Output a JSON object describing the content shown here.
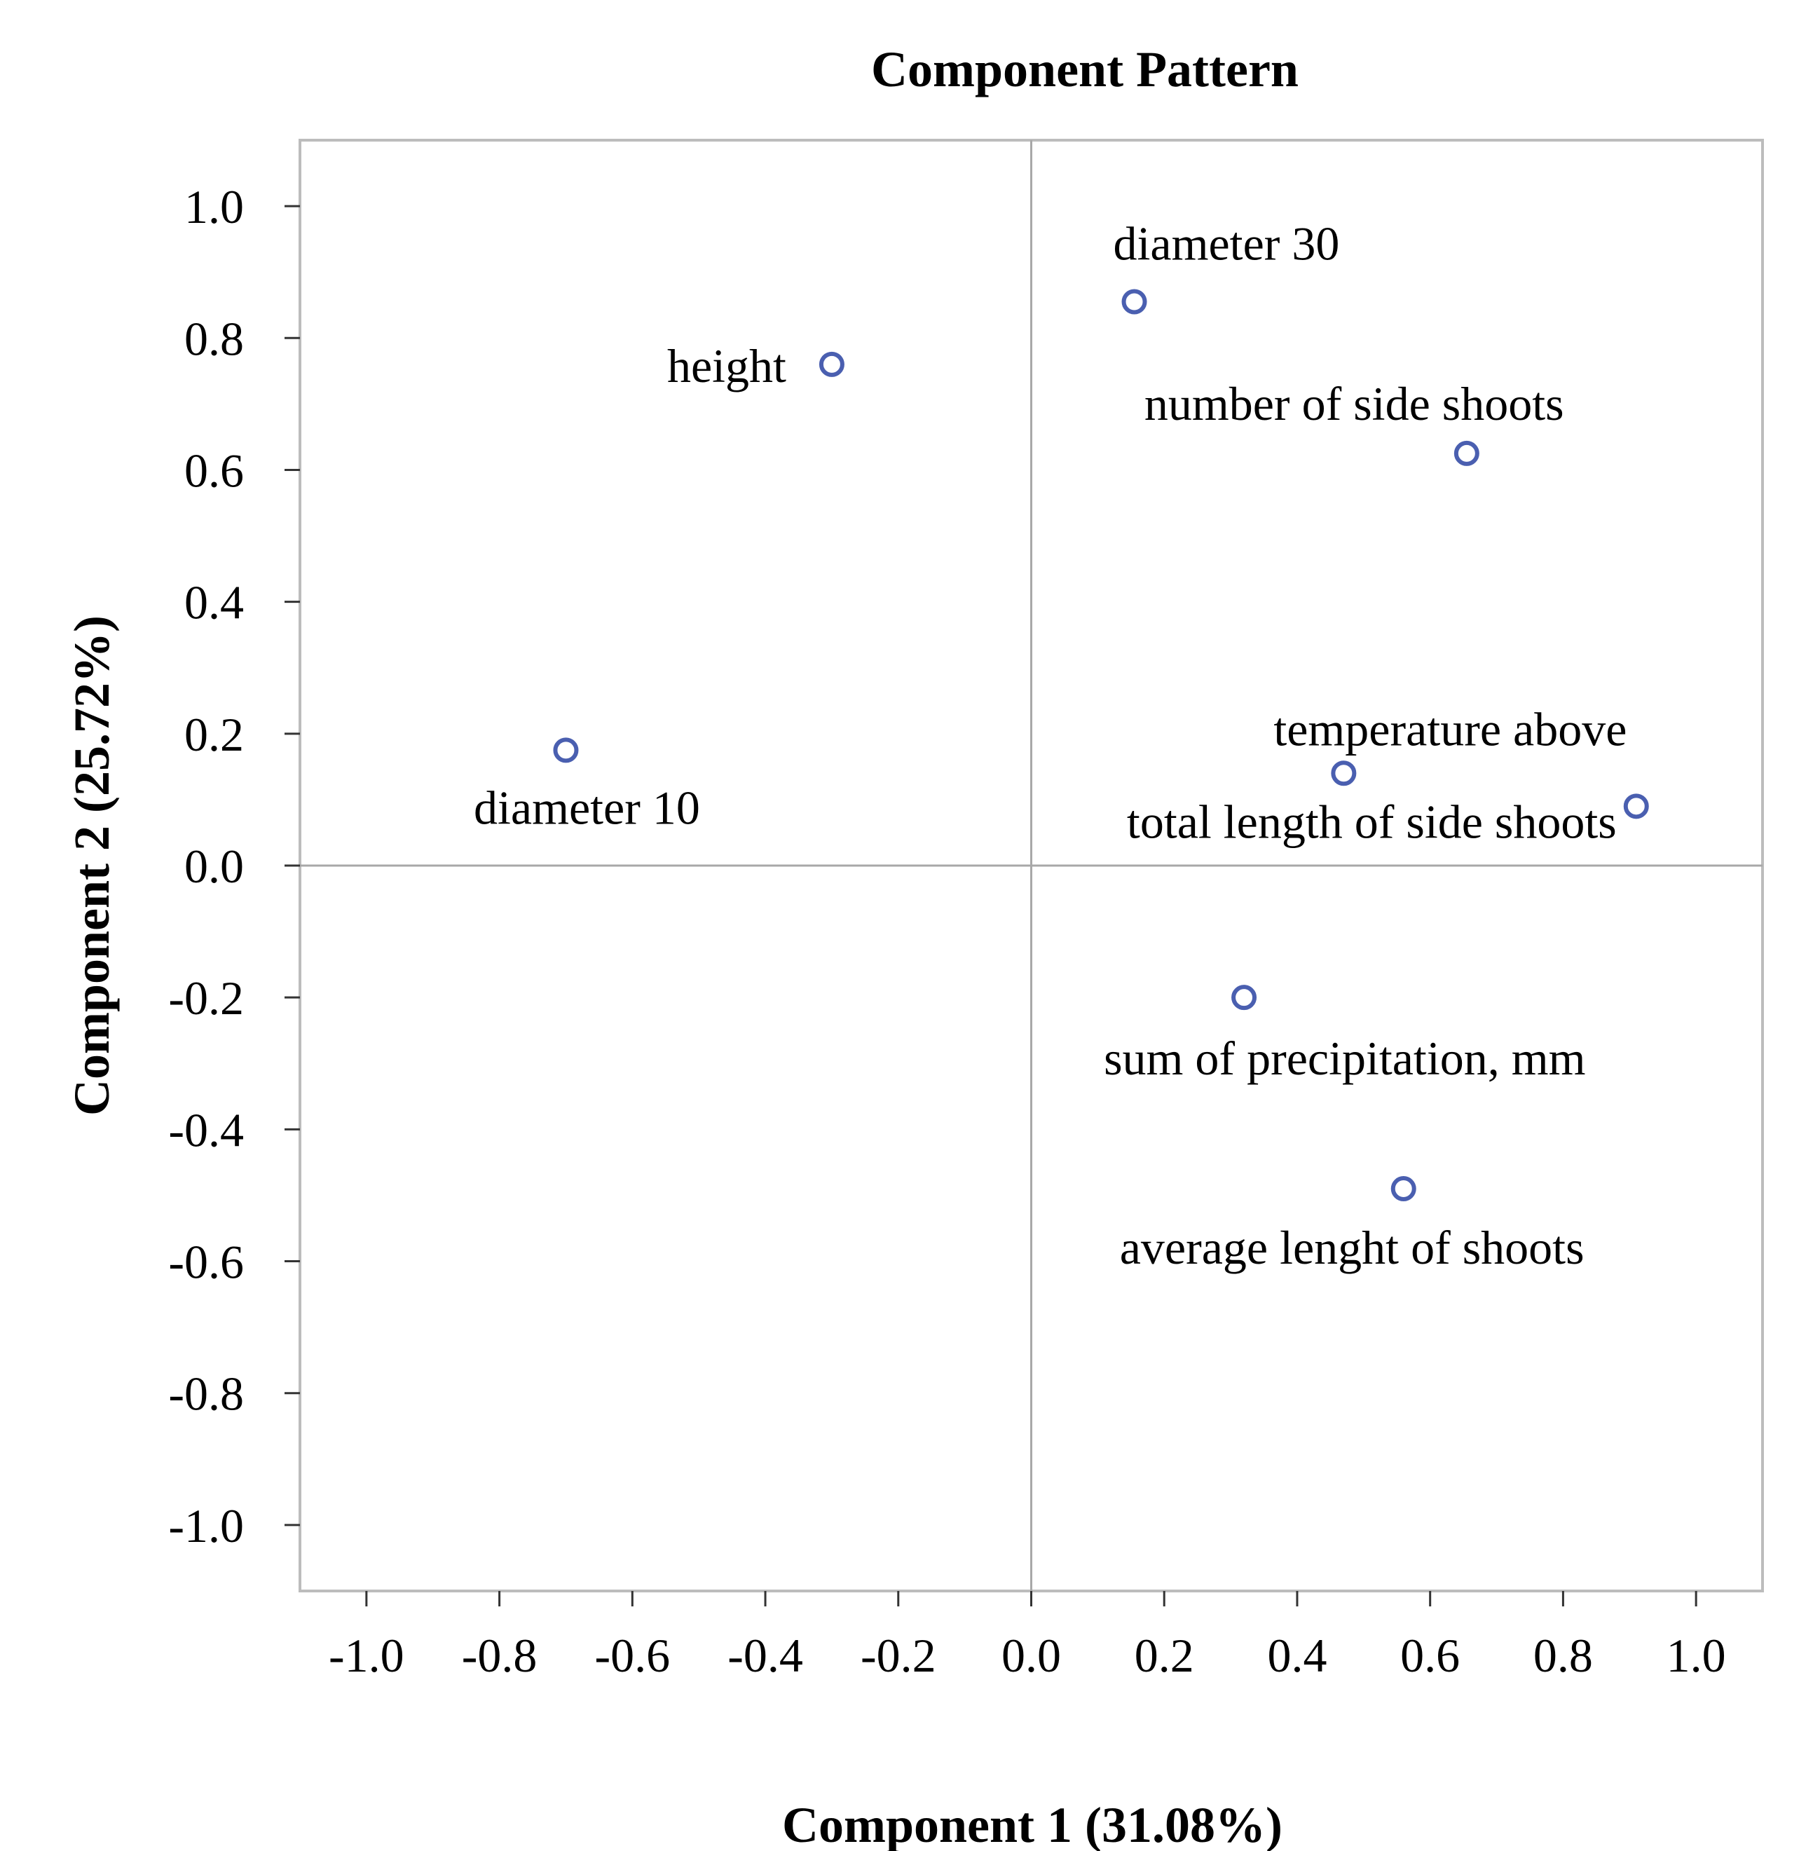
{
  "chart_data": {
    "type": "scatter",
    "title": "Component Pattern",
    "xlabel": "Component 1 (31.08%)",
    "ylabel": "Component 2 (25.72%)",
    "xlim": [
      -1.1,
      1.1
    ],
    "ylim": [
      -1.1,
      1.1
    ],
    "xticks": [
      -1.0,
      -0.8,
      -0.6,
      -0.4,
      -0.2,
      0.0,
      0.2,
      0.4,
      0.6,
      0.8,
      1.0
    ],
    "yticks": [
      1.0,
      0.8,
      0.6,
      0.4,
      0.2,
      0.0,
      -0.2,
      -0.4,
      -0.6,
      -0.8,
      -1.0
    ],
    "xtick_labels": [
      "-1.0",
      "-0.8",
      "-0.6",
      "-0.4",
      "-0.2",
      "0.0",
      "0.2",
      "0.4",
      "0.6",
      "0.8",
      "1.0"
    ],
    "ytick_labels": [
      "1.0",
      "0.8",
      "0.6",
      "0.4",
      "0.2",
      "0.0",
      "-0.2",
      "-0.4",
      "-0.6",
      "-0.8",
      "-1.0"
    ],
    "reference_lines": {
      "x": 0.0,
      "y": 0.0
    },
    "marker_color": "#4a5fb0",
    "points": [
      {
        "label": "diameter 30",
        "x": 0.155,
        "y": 0.855
      },
      {
        "label": "height",
        "x": -0.3,
        "y": 0.76
      },
      {
        "label": "number of side shoots",
        "x": 0.655,
        "y": 0.625
      },
      {
        "label": "diameter 10",
        "x": -0.7,
        "y": 0.175
      },
      {
        "label": "temperature above",
        "x": 0.47,
        "y": 0.14
      },
      {
        "label": "total length of side shoots",
        "x": 0.91,
        "y": 0.09
      },
      {
        "label": "sum of precipitation, mm",
        "x": 0.32,
        "y": -0.2
      },
      {
        "label": "average lenght of shoots",
        "x": 0.56,
        "y": -0.49
      }
    ]
  }
}
